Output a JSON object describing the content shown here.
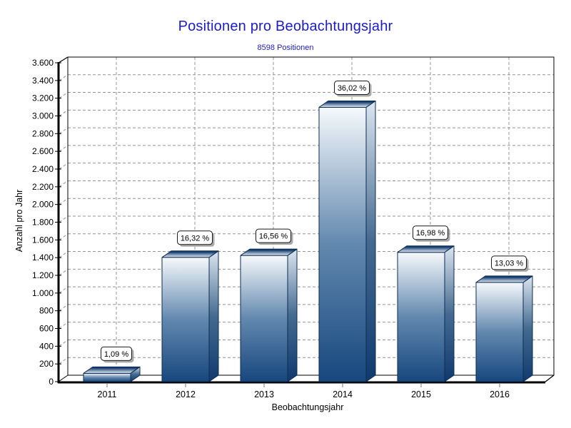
{
  "chart_data": {
    "type": "bar",
    "title": "Positionen pro Beobachtungsjahr",
    "subtitle": "8598 Positionen",
    "xlabel": "Beobachtungsjahr",
    "ylabel": "Anzahl pro Jahr",
    "categories": [
      "2011",
      "2012",
      "2013",
      "2014",
      "2015",
      "2016"
    ],
    "values": [
      94,
      1403,
      1424,
      3097,
      1460,
      1120
    ],
    "bar_labels": [
      "1,09 %",
      "16,32 %",
      "16,56 %",
      "36,02 %",
      "16,98 %",
      "13,03 %"
    ],
    "ylim": [
      0,
      3600
    ],
    "ytick_step": 200,
    "ytick_labels": [
      "0",
      "200",
      "400",
      "600",
      "800",
      "1.000",
      "1.200",
      "1.400",
      "1.600",
      "1.800",
      "2.000",
      "2.200",
      "2.400",
      "2.600",
      "2.800",
      "3.000",
      "3.200",
      "3.400",
      "3.600"
    ],
    "grid": "dashed",
    "style_3d": true,
    "legend": "none",
    "colors": {
      "title": "#1b1bd0",
      "subtitle": "#1b1bd0",
      "axis_text": "#000000",
      "axis_line": "#000000",
      "gridline": "#949494",
      "tick_minor": "#7a7a7a",
      "bar_front_top": "#f6f9fc",
      "bar_front_mid": "#6288ae",
      "bar_front_bottom": "#17477e",
      "bar_side_top": "#dce6f0",
      "bar_side_mid": "#446a90",
      "bar_side_bottom": "#0f3a6e",
      "bar_top_front": "#e8eef6",
      "bar_top_back": "#0f3a6e",
      "bar_outline": "#0d2c52",
      "label_box_bg": "#ffffff",
      "label_box_border": "#1a1a1a",
      "label_box_shadow": "#9a9a9a"
    }
  }
}
